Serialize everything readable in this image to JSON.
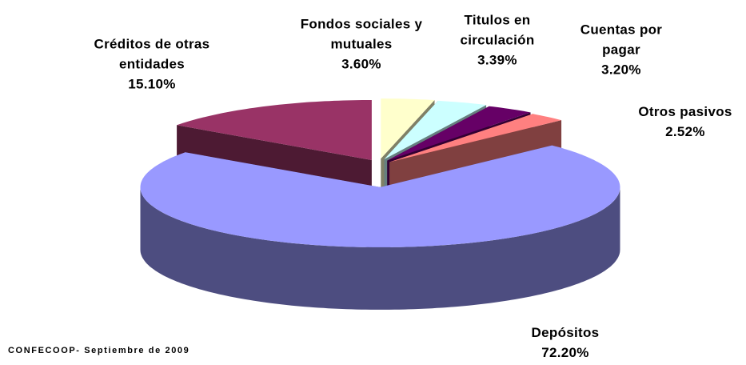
{
  "chart_data": {
    "type": "pie",
    "source": "CONFECOOP- Septiembre de 2009",
    "categories": [
      "Fondos sociales y mutuales",
      "Titulos en circulación",
      "Cuentas por pagar",
      "Otros pasivos",
      "Depósitos",
      "Créditos de otras entidades"
    ],
    "values": [
      3.6,
      3.39,
      3.2,
      2.52,
      72.2,
      15.1
    ],
    "value_labels": [
      "3.60%",
      "3.39%",
      "3.20%",
      "2.52%",
      "72.20%",
      "15.10%"
    ],
    "colors": [
      "#ffffcc",
      "#ccffff",
      "#660066",
      "#ff8080",
      "#9999ff",
      "#993366"
    ]
  }
}
